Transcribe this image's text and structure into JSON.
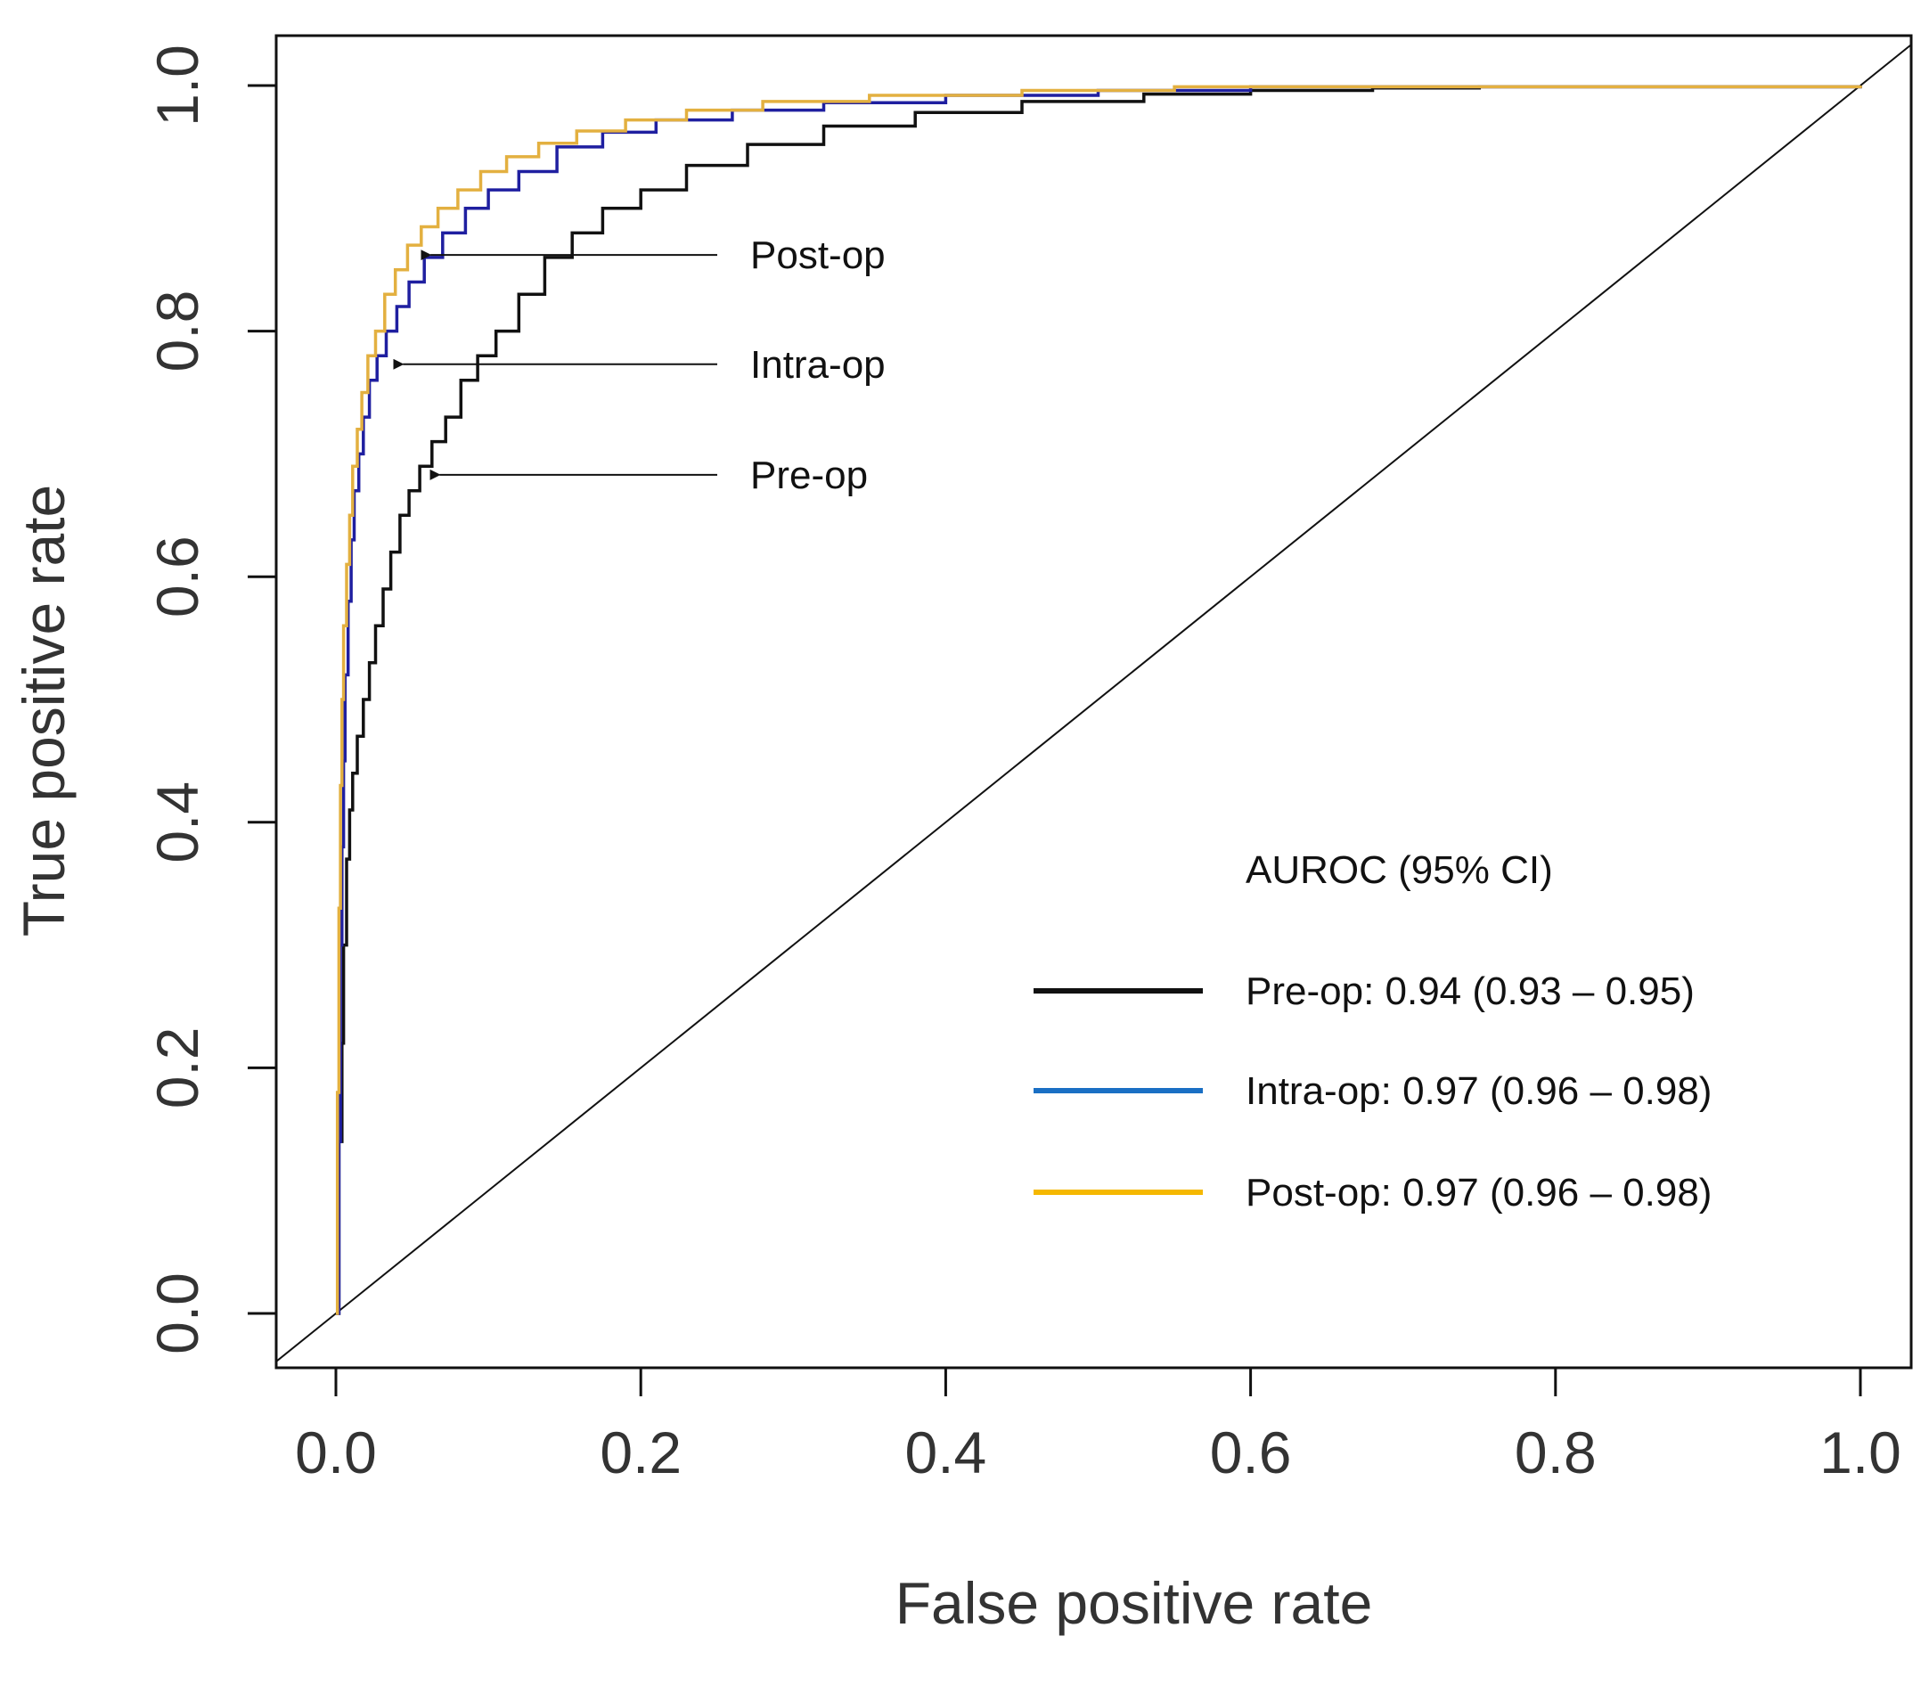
{
  "chart_data": {
    "type": "line",
    "xlabel": "False positive rate",
    "ylabel": "True positive rate",
    "xlim": [
      0,
      1
    ],
    "ylim": [
      0,
      1
    ],
    "x_ticks": [
      "0.0",
      "0.2",
      "0.4",
      "0.6",
      "0.8",
      "1.0"
    ],
    "y_ticks": [
      "0.0",
      "0.2",
      "0.4",
      "0.6",
      "0.8",
      "1.0"
    ],
    "grid": false,
    "legend_position": "bottom-right",
    "legend_title": "AUROC (95% CI)",
    "legend_entries": [
      "Pre-op: 0.94 (0.93 – 0.95)",
      "Intra-op: 0.97 (0.96 – 0.98)",
      "Post-op: 0.97 (0.96 – 0.98)"
    ],
    "annotations": [
      {
        "text": "Post-op",
        "x": 0.055,
        "y": 0.862
      },
      {
        "text": "Intra-op",
        "x": 0.037,
        "y": 0.773
      },
      {
        "text": "Pre-op",
        "x": 0.061,
        "y": 0.683
      }
    ],
    "reference_line": {
      "x": [
        0,
        1
      ],
      "y": [
        0,
        1
      ]
    },
    "series": [
      {
        "color": "#111111",
        "x": [
          0.0,
          0.002,
          0.004,
          0.005,
          0.007,
          0.009,
          0.011,
          0.014,
          0.018,
          0.022,
          0.026,
          0.031,
          0.036,
          0.042,
          0.048,
          0.055,
          0.063,
          0.072,
          0.082,
          0.093,
          0.105,
          0.12,
          0.137,
          0.155,
          0.175,
          0.2,
          0.23,
          0.27,
          0.32,
          0.38,
          0.45,
          0.53,
          0.6,
          0.68,
          0.75,
          1.0
        ],
        "y": [
          0.0,
          0.14,
          0.22,
          0.3,
          0.37,
          0.41,
          0.44,
          0.47,
          0.5,
          0.53,
          0.56,
          0.59,
          0.62,
          0.65,
          0.67,
          0.69,
          0.71,
          0.73,
          0.76,
          0.78,
          0.8,
          0.83,
          0.86,
          0.88,
          0.9,
          0.915,
          0.935,
          0.952,
          0.967,
          0.978,
          0.987,
          0.993,
          0.996,
          0.998,
          0.999,
          1.0
        ]
      },
      {
        "color": "#1f1fa0",
        "x": [
          0.0,
          0.002,
          0.003,
          0.004,
          0.005,
          0.006,
          0.008,
          0.01,
          0.012,
          0.015,
          0.018,
          0.022,
          0.027,
          0.033,
          0.04,
          0.048,
          0.058,
          0.07,
          0.085,
          0.1,
          0.12,
          0.145,
          0.175,
          0.21,
          0.26,
          0.32,
          0.4,
          0.5,
          0.6,
          1.0
        ],
        "y": [
          0.0,
          0.14,
          0.3,
          0.38,
          0.45,
          0.52,
          0.58,
          0.63,
          0.67,
          0.7,
          0.73,
          0.76,
          0.78,
          0.8,
          0.82,
          0.84,
          0.86,
          0.88,
          0.9,
          0.915,
          0.93,
          0.95,
          0.962,
          0.972,
          0.98,
          0.986,
          0.992,
          0.996,
          0.999,
          1.0
        ]
      },
      {
        "color": "#e3b040",
        "x": [
          0.0,
          0.001,
          0.002,
          0.003,
          0.004,
          0.005,
          0.007,
          0.009,
          0.011,
          0.014,
          0.017,
          0.021,
          0.026,
          0.032,
          0.039,
          0.047,
          0.056,
          0.067,
          0.08,
          0.095,
          0.112,
          0.133,
          0.158,
          0.19,
          0.23,
          0.28,
          0.35,
          0.45,
          0.55,
          1.0
        ],
        "y": [
          0.0,
          0.18,
          0.33,
          0.43,
          0.5,
          0.56,
          0.61,
          0.65,
          0.69,
          0.72,
          0.75,
          0.78,
          0.8,
          0.83,
          0.85,
          0.87,
          0.885,
          0.9,
          0.915,
          0.93,
          0.942,
          0.953,
          0.963,
          0.972,
          0.98,
          0.987,
          0.992,
          0.996,
          0.999,
          1.0
        ]
      }
    ]
  },
  "legend_colors": [
    "#111111",
    "#1a6fc4",
    "#f5b800"
  ]
}
